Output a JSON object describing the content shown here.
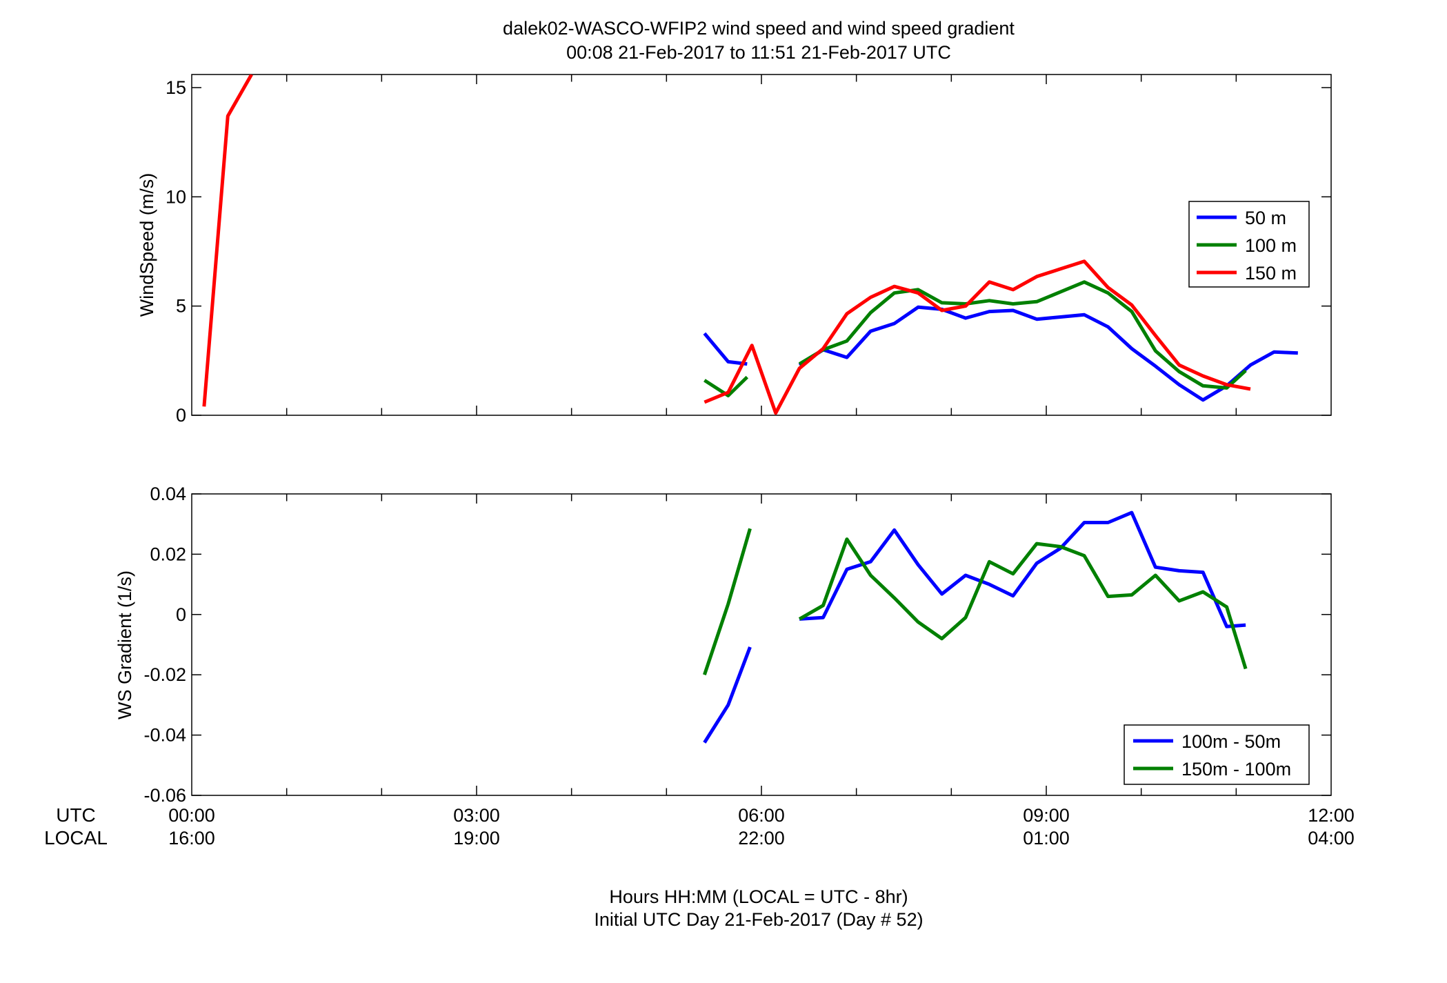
{
  "figure": {
    "title_line1": "dalek02-WASCO-WFIP2  wind speed and wind speed gradient",
    "title_line2": "00:08 21-Feb-2017 to 11:51 21-Feb-2017  UTC",
    "xlabel_line1": "Hours HH:MM  (LOCAL = UTC - 8hr)",
    "xlabel_line2": "Initial UTC Day 21-Feb-2017 (Day # 52)",
    "row_label_utc": "UTC",
    "row_label_local": "LOCAL",
    "xticks": [
      0,
      3,
      6,
      9,
      12
    ],
    "xtick_utc": [
      "00:00",
      "03:00",
      "06:00",
      "09:00",
      "12:00"
    ],
    "xtick_local": [
      "16:00",
      "19:00",
      "22:00",
      "01:00",
      "04:00"
    ],
    "xlim": [
      0,
      12
    ]
  },
  "chart_data": [
    {
      "type": "line",
      "title": "",
      "xlabel": "",
      "ylabel": "WindSpeed (m/s)",
      "xlim": [
        0,
        12
      ],
      "ylim": [
        0,
        15.6
      ],
      "yticks": [
        0,
        5,
        10,
        15
      ],
      "ytick_labels": [
        "0",
        "5",
        "10",
        "15"
      ],
      "grid": false,
      "legend_position": "right",
      "series": [
        {
          "name": "50 m",
          "color": "#0000ff",
          "segments": [
            [
              [
                5.4,
                3.75
              ],
              [
                5.65,
                2.45
              ],
              [
                5.85,
                2.35
              ]
            ],
            [
              [
                6.4,
                2.3
              ],
              [
                6.65,
                3.0
              ],
              [
                6.9,
                2.65
              ],
              [
                7.15,
                3.85
              ],
              [
                7.4,
                4.2
              ],
              [
                7.65,
                4.95
              ],
              [
                7.9,
                4.85
              ],
              [
                8.15,
                4.45
              ],
              [
                8.4,
                4.75
              ],
              [
                8.65,
                4.8
              ],
              [
                8.9,
                4.4
              ],
              [
                9.15,
                4.5
              ],
              [
                9.4,
                4.6
              ],
              [
                9.65,
                4.05
              ],
              [
                9.9,
                3.05
              ],
              [
                10.15,
                2.25
              ],
              [
                10.4,
                1.4
              ],
              [
                10.65,
                0.7
              ],
              [
                10.9,
                1.35
              ],
              [
                11.15,
                2.3
              ],
              [
                11.4,
                2.9
              ],
              [
                11.65,
                2.85
              ]
            ]
          ]
        },
        {
          "name": "100 m",
          "color": "#008000",
          "segments": [
            [
              [
                5.4,
                1.6
              ],
              [
                5.65,
                0.9
              ],
              [
                5.85,
                1.75
              ]
            ],
            [
              [
                6.4,
                2.35
              ],
              [
                6.65,
                3.0
              ],
              [
                6.9,
                3.4
              ],
              [
                7.15,
                4.7
              ],
              [
                7.4,
                5.6
              ],
              [
                7.65,
                5.75
              ],
              [
                7.9,
                5.15
              ],
              [
                8.15,
                5.1
              ],
              [
                8.4,
                5.25
              ],
              [
                8.65,
                5.1
              ],
              [
                8.9,
                5.2
              ],
              [
                9.15,
                5.65
              ],
              [
                9.4,
                6.1
              ],
              [
                9.65,
                5.6
              ],
              [
                9.9,
                4.75
              ],
              [
                10.15,
                2.95
              ],
              [
                10.4,
                2.0
              ],
              [
                10.65,
                1.35
              ],
              [
                10.9,
                1.25
              ],
              [
                11.1,
                2.05
              ]
            ]
          ]
        },
        {
          "name": "150 m",
          "color": "#ff0000",
          "segments": [
            [
              [
                0.13,
                0.4
              ],
              [
                0.38,
                13.7
              ],
              [
                0.63,
                15.6
              ]
            ],
            [
              [
                5.4,
                0.6
              ],
              [
                5.65,
                1.05
              ],
              [
                5.9,
                3.2
              ],
              [
                6.15,
                0.1
              ],
              [
                6.4,
                2.15
              ],
              [
                6.65,
                3.05
              ],
              [
                6.9,
                4.65
              ],
              [
                7.15,
                5.4
              ],
              [
                7.4,
                5.9
              ],
              [
                7.65,
                5.6
              ],
              [
                7.9,
                4.8
              ],
              [
                8.15,
                5.0
              ],
              [
                8.4,
                6.1
              ],
              [
                8.65,
                5.75
              ],
              [
                8.9,
                6.35
              ],
              [
                9.15,
                6.7
              ],
              [
                9.4,
                7.05
              ],
              [
                9.65,
                5.85
              ],
              [
                9.9,
                5.05
              ],
              [
                10.15,
                3.65
              ],
              [
                10.4,
                2.3
              ],
              [
                10.65,
                1.8
              ],
              [
                10.9,
                1.4
              ],
              [
                11.15,
                1.2
              ]
            ]
          ]
        }
      ]
    },
    {
      "type": "line",
      "title": "",
      "xlabel": "",
      "ylabel": "WS Gradient (1/s)",
      "xlim": [
        0,
        12
      ],
      "ylim": [
        -0.06,
        0.04
      ],
      "yticks": [
        -0.06,
        -0.04,
        -0.02,
        0,
        0.02,
        0.04
      ],
      "ytick_labels": [
        "-0.06",
        "-0.04",
        "-0.02",
        "0",
        "0.02",
        "0.04"
      ],
      "grid": false,
      "legend_position": "bottom-right",
      "series": [
        {
          "name": "100m - 50m",
          "color": "#0000ff",
          "segments": [
            [
              [
                5.4,
                -0.0425
              ],
              [
                5.65,
                -0.03
              ],
              [
                5.88,
                -0.0108
              ]
            ],
            [
              [
                6.4,
                -0.0015
              ],
              [
                6.65,
                -0.001
              ],
              [
                6.9,
                0.015
              ],
              [
                7.15,
                0.0175
              ],
              [
                7.4,
                0.028
              ],
              [
                7.65,
                0.0165
              ],
              [
                7.9,
                0.0068
              ],
              [
                8.15,
                0.013
              ],
              [
                8.4,
                0.01
              ],
              [
                8.65,
                0.0062
              ],
              [
                8.9,
                0.017
              ],
              [
                9.15,
                0.022
              ],
              [
                9.4,
                0.0305
              ],
              [
                9.65,
                0.0305
              ],
              [
                9.9,
                0.0338
              ],
              [
                10.15,
                0.0157
              ],
              [
                10.4,
                0.0145
              ],
              [
                10.65,
                0.014
              ],
              [
                10.9,
                -0.004
              ],
              [
                11.1,
                -0.0035
              ]
            ]
          ]
        },
        {
          "name": "150m - 100m",
          "color": "#008000",
          "segments": [
            [
              [
                5.4,
                -0.02
              ],
              [
                5.65,
                0.0035
              ],
              [
                5.88,
                0.0285
              ]
            ],
            [
              [
                6.4,
                -0.0015
              ],
              [
                6.65,
                0.003
              ],
              [
                6.9,
                0.025
              ],
              [
                7.15,
                0.013
              ],
              [
                7.4,
                0.0055
              ],
              [
                7.65,
                -0.0025
              ],
              [
                7.9,
                -0.008
              ],
              [
                8.15,
                -0.001
              ],
              [
                8.4,
                0.0175
              ],
              [
                8.65,
                0.0135
              ],
              [
                8.9,
                0.0235
              ],
              [
                9.15,
                0.0225
              ],
              [
                9.4,
                0.0195
              ],
              [
                9.65,
                0.006
              ],
              [
                9.9,
                0.0065
              ],
              [
                10.15,
                0.013
              ],
              [
                10.4,
                0.0045
              ],
              [
                10.65,
                0.0075
              ],
              [
                10.9,
                0.0025
              ],
              [
                11.1,
                -0.018
              ]
            ]
          ]
        }
      ]
    }
  ]
}
